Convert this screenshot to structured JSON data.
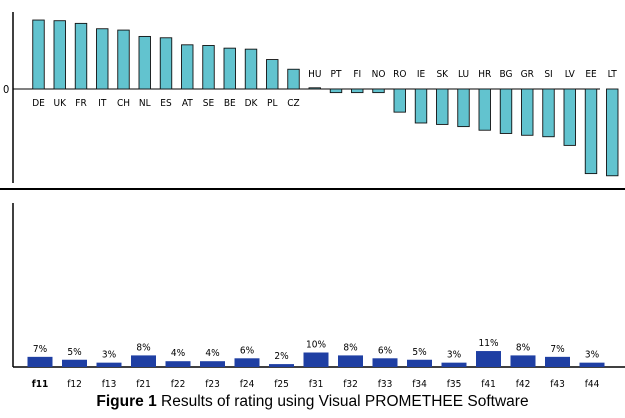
{
  "chart_data": [
    {
      "type": "bar",
      "categories": [
        "DE",
        "UK",
        "FR",
        "IT",
        "CH",
        "NL",
        "ES",
        "AT",
        "SE",
        "BE",
        "DK",
        "PL",
        "CZ",
        "HU",
        "PT",
        "FI",
        "NO",
        "RO",
        "IE",
        "SK",
        "LU",
        "HR",
        "BG",
        "GR",
        "SI",
        "LV",
        "EE",
        "LT"
      ],
      "values": [
        0.206,
        0.204,
        0.196,
        0.18,
        0.176,
        0.157,
        0.153,
        0.132,
        0.13,
        0.122,
        0.119,
        0.088,
        0.059,
        0.0,
        -0.01,
        -0.01,
        -0.01,
        -0.064,
        -0.094,
        -0.098,
        -0.104,
        -0.114,
        -0.123,
        -0.128,
        -0.132,
        -0.156,
        -0.234,
        -0.24
      ],
      "ylim": [
        -0.26,
        0.23
      ],
      "ytick_labels": [
        "0"
      ],
      "color": "#62c3cf",
      "grid": false
    },
    {
      "type": "bar",
      "categories": [
        "f11",
        "f12",
        "f13",
        "f21",
        "f22",
        "f23",
        "f24",
        "f25",
        "f31",
        "f32",
        "f33",
        "f34",
        "f35",
        "f41",
        "f42",
        "f43",
        "f44"
      ],
      "values": [
        7,
        5,
        3,
        8,
        4,
        4,
        6,
        2,
        10,
        8,
        6,
        5,
        3,
        11,
        8,
        7,
        3
      ],
      "value_labels": [
        "7%",
        "5%",
        "3%",
        "8%",
        "4%",
        "4%",
        "6%",
        "2%",
        "10%",
        "8%",
        "6%",
        "5%",
        "3%",
        "11%",
        "8%",
        "7%",
        "3%"
      ],
      "unit": "%",
      "color": "#1f3fa3",
      "grid": false
    }
  ],
  "caption": {
    "label": "Figure 1",
    "text": " Results of rating using Visual PROMETHEE Software"
  }
}
